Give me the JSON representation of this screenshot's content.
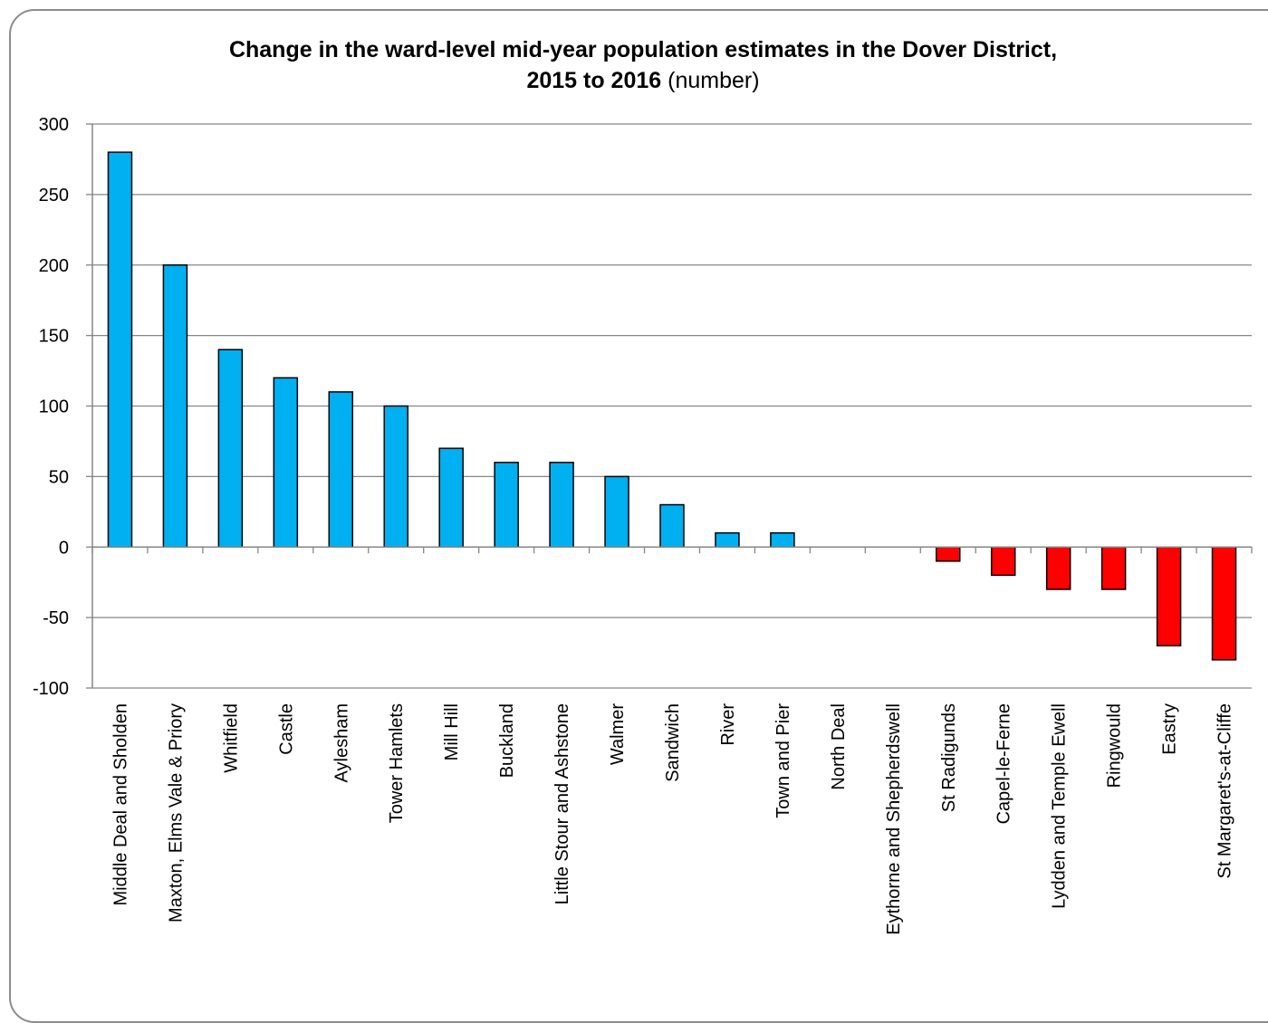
{
  "chart_data": {
    "type": "bar",
    "title_bold_line1": "Change in the ward-level mid-year population estimates in the Dover District,",
    "title_bold_line2": "2015 to 2016",
    "title_unit": "(number)",
    "xlabel": "",
    "ylabel": "",
    "ylim": [
      -100,
      300
    ],
    "yticks": [
      300,
      250,
      200,
      150,
      100,
      50,
      0,
      -50,
      -100
    ],
    "grid": true,
    "legend": "none",
    "colors": {
      "positive": "#00B0F0",
      "negative": "#FF0000",
      "outline": "#000000",
      "grid": "#868686"
    },
    "categories": [
      "Middle Deal and Sholden",
      "Maxton, Elms Vale & Priory",
      "Whitfield",
      "Castle",
      "Aylesham",
      "Tower Hamlets",
      "Mill Hill",
      "Buckland",
      "Little Stour and Ashstone",
      "Walmer",
      "Sandwich",
      "River",
      "Town and Pier",
      "North Deal",
      "Eythorne and Shepherdswell",
      "St Radigunds",
      "Capel-le-Ferne",
      "Lydden and Temple Ewell",
      "Ringwould",
      "Eastry",
      "St Margaret's-at-Cliffe"
    ],
    "values": [
      280,
      200,
      140,
      120,
      110,
      100,
      70,
      60,
      60,
      50,
      30,
      10,
      10,
      0,
      0,
      -10,
      -20,
      -30,
      -30,
      -70,
      -80
    ]
  }
}
